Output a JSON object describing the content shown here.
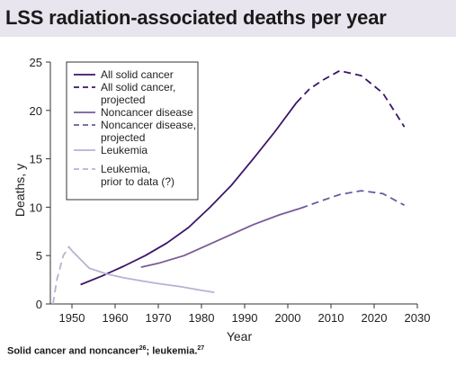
{
  "header": {
    "title": "LSS radiation-associated deaths per year"
  },
  "caption": {
    "part1": "Solid cancer and noncancer",
    "ref1": "26",
    "part2": "; leukemia.",
    "ref2": "27"
  },
  "chart_data": {
    "type": "line",
    "title": "LSS radiation-associated deaths per year",
    "xlabel": "Year",
    "ylabel": "Deaths, y",
    "xlim": [
      1945,
      2030
    ],
    "ylim": [
      0,
      25
    ],
    "xticks": [
      1950,
      1960,
      1970,
      1980,
      1990,
      2000,
      2010,
      2020,
      2030
    ],
    "yticks": [
      0,
      5,
      10,
      15,
      20,
      25
    ],
    "grid": false,
    "legend_position": "top-left",
    "series": [
      {
        "name": "All solid cancer",
        "style": "solid",
        "color": "#3b1566",
        "x": [
          1952,
          1957,
          1962,
          1967,
          1972,
          1977,
          1982,
          1987,
          1992,
          1997,
          2002
        ],
        "y": [
          2.0,
          2.9,
          3.9,
          5.0,
          6.3,
          7.9,
          10.0,
          12.3,
          15.0,
          17.8,
          20.8
        ]
      },
      {
        "name": "All solid cancer, projected",
        "style": "dashed",
        "color": "#3b1566",
        "x": [
          2002,
          2005,
          2008,
          2012,
          2017,
          2022,
          2027
        ],
        "y": [
          20.8,
          22.2,
          23.1,
          24.1,
          23.6,
          21.8,
          18.3
        ]
      },
      {
        "name": "Noncancer disease",
        "style": "solid",
        "color": "#7a5a9a",
        "x": [
          1966,
          1970,
          1976,
          1982,
          1986,
          1992,
          1998,
          2003
        ],
        "y": [
          3.8,
          4.2,
          5.0,
          6.2,
          7.0,
          8.2,
          9.2,
          9.9
        ]
      },
      {
        "name": "Noncancer disease, projected",
        "style": "dashed",
        "color": "#6a5a9e",
        "x": [
          2003,
          2008,
          2012,
          2017,
          2022,
          2027
        ],
        "y": [
          9.9,
          10.7,
          11.3,
          11.7,
          11.4,
          10.2
        ]
      },
      {
        "name": "Leukemia",
        "style": "solid",
        "color": "#b6b2d4",
        "x": [
          1950,
          1954,
          1958,
          1962,
          1966,
          1970,
          1975,
          1980,
          1983
        ],
        "y": [
          5.5,
          3.7,
          3.1,
          2.7,
          2.4,
          2.1,
          1.8,
          1.4,
          1.2
        ]
      },
      {
        "name": "Leukemia, prior to data (?)",
        "style": "dashed",
        "color": "#b6b2d4",
        "x": [
          1945.6,
          1946.5,
          1948,
          1949.3,
          1950
        ],
        "y": [
          0,
          2.5,
          5.0,
          5.9,
          5.5
        ]
      }
    ]
  }
}
